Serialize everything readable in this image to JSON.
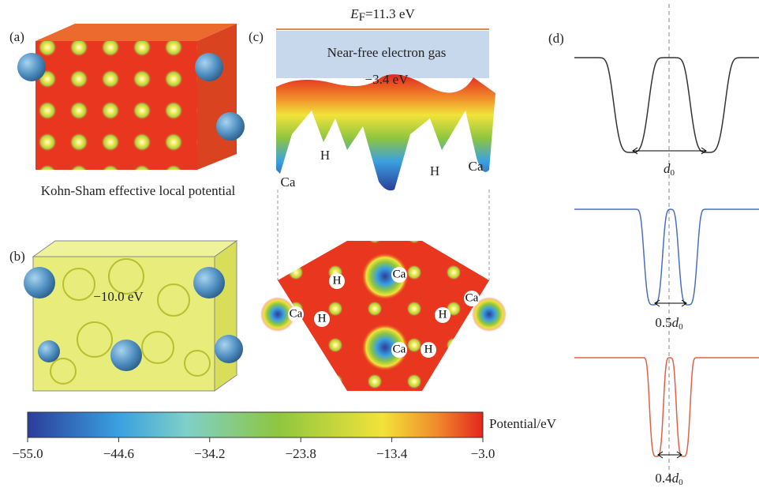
{
  "panels": {
    "a": "(a)",
    "b": "(b)",
    "c": "(c)",
    "d": "(d)"
  },
  "panel_a": {
    "caption": "Kohn-Sham effective local potential"
  },
  "panel_b": {
    "isovalue": "−10.0 eV"
  },
  "panel_c": {
    "fermi": {
      "var": "E",
      "sub": "F",
      "text": "=11.3 eV"
    },
    "gas_label": "Near-free electron gas",
    "level": "−3.4 eV",
    "surface_labels": [
      "Ca",
      "H",
      "H",
      "Ca"
    ],
    "slice_labels": [
      "Ca",
      "H",
      "Ca",
      "Ca",
      "H",
      "H",
      "Ca",
      "H"
    ]
  },
  "colorbar": {
    "title": "Potential/eV",
    "lim": [
      -55,
      -3
    ],
    "ticks": [
      {
        "value": -55,
        "label": "−55.0"
      },
      {
        "value": -44.6,
        "label": "−44.6"
      },
      {
        "value": -34.2,
        "label": "−34.2"
      },
      {
        "value": -23.8,
        "label": "−23.8"
      },
      {
        "value": -13.4,
        "label": "−13.4"
      },
      {
        "value": -3,
        "label": "−3.0"
      }
    ]
  },
  "panel_d": {
    "labels": [
      {
        "var": "d",
        "sub": "0"
      },
      {
        "coef": "0.5",
        "var": "d",
        "sub": "0"
      },
      {
        "coef": "0.4",
        "var": "d",
        "sub": "0"
      }
    ]
  }
}
